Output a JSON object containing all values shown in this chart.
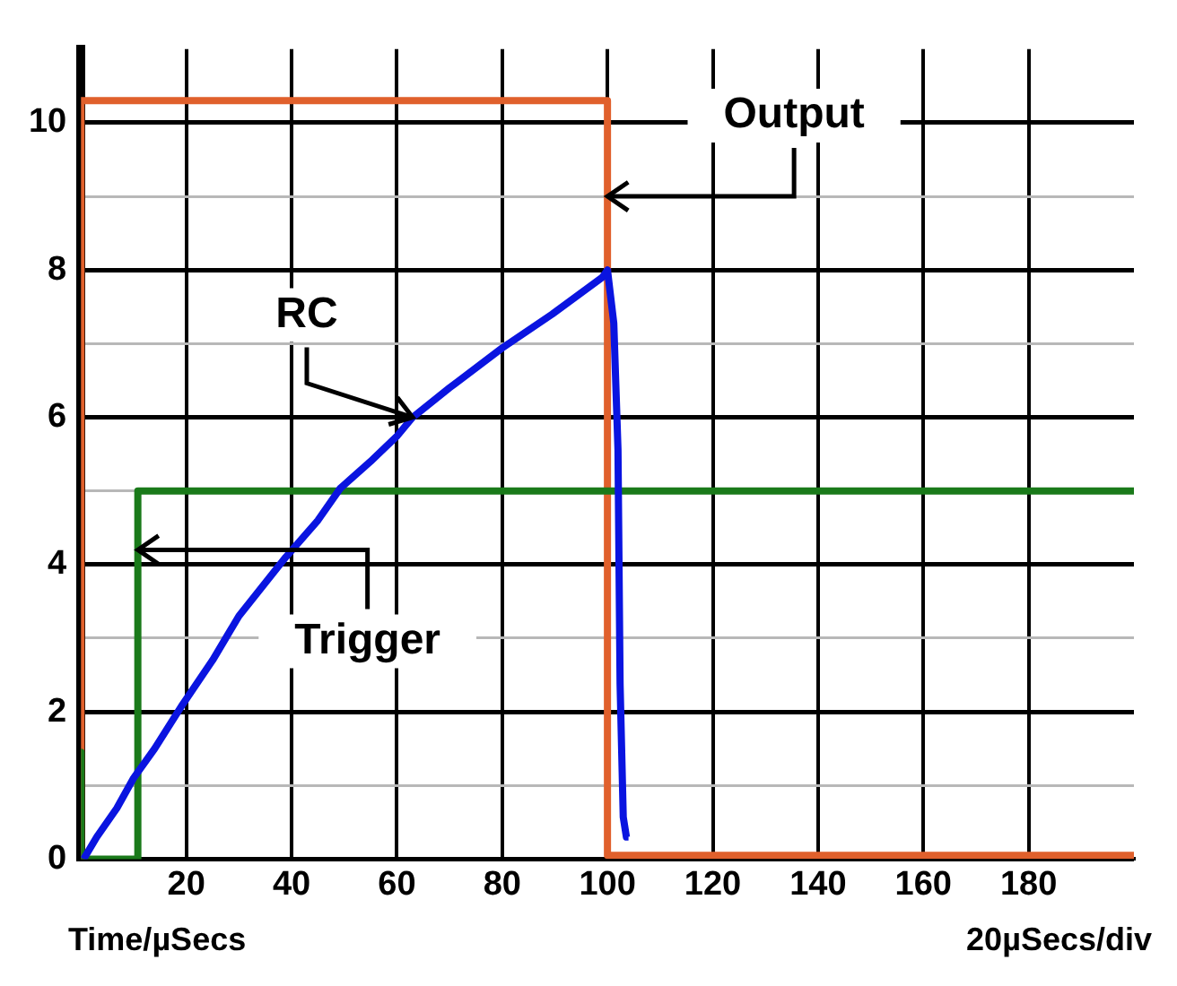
{
  "chart_data": {
    "type": "line",
    "xlabel": "Time/µSecs",
    "xlim": [
      0,
      200
    ],
    "xticks": [
      20,
      40,
      60,
      80,
      100,
      120,
      140,
      160,
      180
    ],
    "ylim": [
      0,
      11
    ],
    "yticks": [
      0,
      {
        "value": 1,
        "label": null
      },
      2,
      {
        "value": 3,
        "label": null
      },
      4,
      {
        "value": 5,
        "label": null
      },
      6,
      {
        "value": 7,
        "label": null
      },
      8,
      {
        "value": 9,
        "label": null
      },
      10
    ],
    "grid": true,
    "legend": false,
    "marker": "none",
    "line_style": "solid",
    "series": [
      {
        "color": "#0a14e0",
        "x": [
          0.5,
          3,
          6.8,
          10,
          14,
          19.3,
          25,
          30,
          38.9,
          45,
          49.3,
          55,
          60.1,
          63,
          70,
          80,
          89.5,
          99,
          100,
          101.2,
          102,
          102.4,
          103,
          103.6,
          104
        ],
        "values": [
          0,
          0.3,
          0.69,
          1.1,
          1.5,
          2.1,
          2.7,
          3.3,
          4.1,
          4.6,
          5.04,
          5.4,
          5.75,
          6.0,
          6.4,
          6.94,
          7.4,
          7.9,
          8.0,
          7.28,
          5.56,
          2.37,
          0.57,
          0.3,
          0.3
        ]
      },
      {
        "color": "#1a7a1a",
        "x": [
          0,
          0,
          10.8,
          10.8,
          200
        ],
        "values": [
          1.45,
          0,
          0,
          5.0,
          5.0
        ]
      },
      {
        "color": "#e0602c",
        "x": [
          0,
          0,
          100,
          100,
          200
        ],
        "values": [
          0,
          10.3,
          10.3,
          0.05,
          0.05
        ]
      }
    ],
    "annotations": [
      {
        "text": "Output",
        "x": 100,
        "y": 9.0
      },
      {
        "text": "RC",
        "x": 63,
        "y": 6.0
      },
      {
        "text": "Trigger",
        "x": 10.8,
        "y": 4.2
      },
      "20µSecs/div"
    ]
  }
}
